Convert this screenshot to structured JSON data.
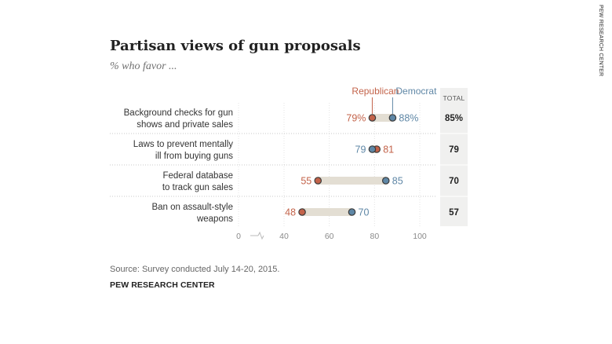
{
  "chart_data": {
    "type": "dot-range",
    "title": "Partisan views of gun proposals",
    "subtitle": "% who favor ...",
    "series": [
      {
        "name": "Republican",
        "color": "#c3634a",
        "values": [
          79,
          81,
          55,
          48
        ],
        "labels": [
          "79%",
          "81",
          "55",
          "48"
        ]
      },
      {
        "name": "Democrat",
        "color": "#5f87a6",
        "values": [
          88,
          79,
          85,
          70
        ],
        "labels": [
          "88%",
          "79",
          "85",
          "70"
        ]
      }
    ],
    "categories": [
      {
        "lines": [
          "Background checks for gun",
          "shows and private sales"
        ],
        "total": "85%"
      },
      {
        "lines": [
          "Laws to prevent mentally",
          "ill from buying guns"
        ],
        "total": "79"
      },
      {
        "lines": [
          "Federal database",
          "to track gun sales"
        ],
        "total": "70"
      },
      {
        "lines": [
          "Ban on assault-style",
          "weapons"
        ],
        "total": "57"
      }
    ],
    "total_header": "TOTAL",
    "x_ticks": [
      0,
      40,
      60,
      80,
      100
    ],
    "x_range": [
      40,
      100
    ],
    "axis_break": true
  },
  "source": "Source: Survey conducted July 14-20, 2015.",
  "brand": "PEW RESEARCH CENTER",
  "side_credit": "PEW RESEARCH CENTER"
}
